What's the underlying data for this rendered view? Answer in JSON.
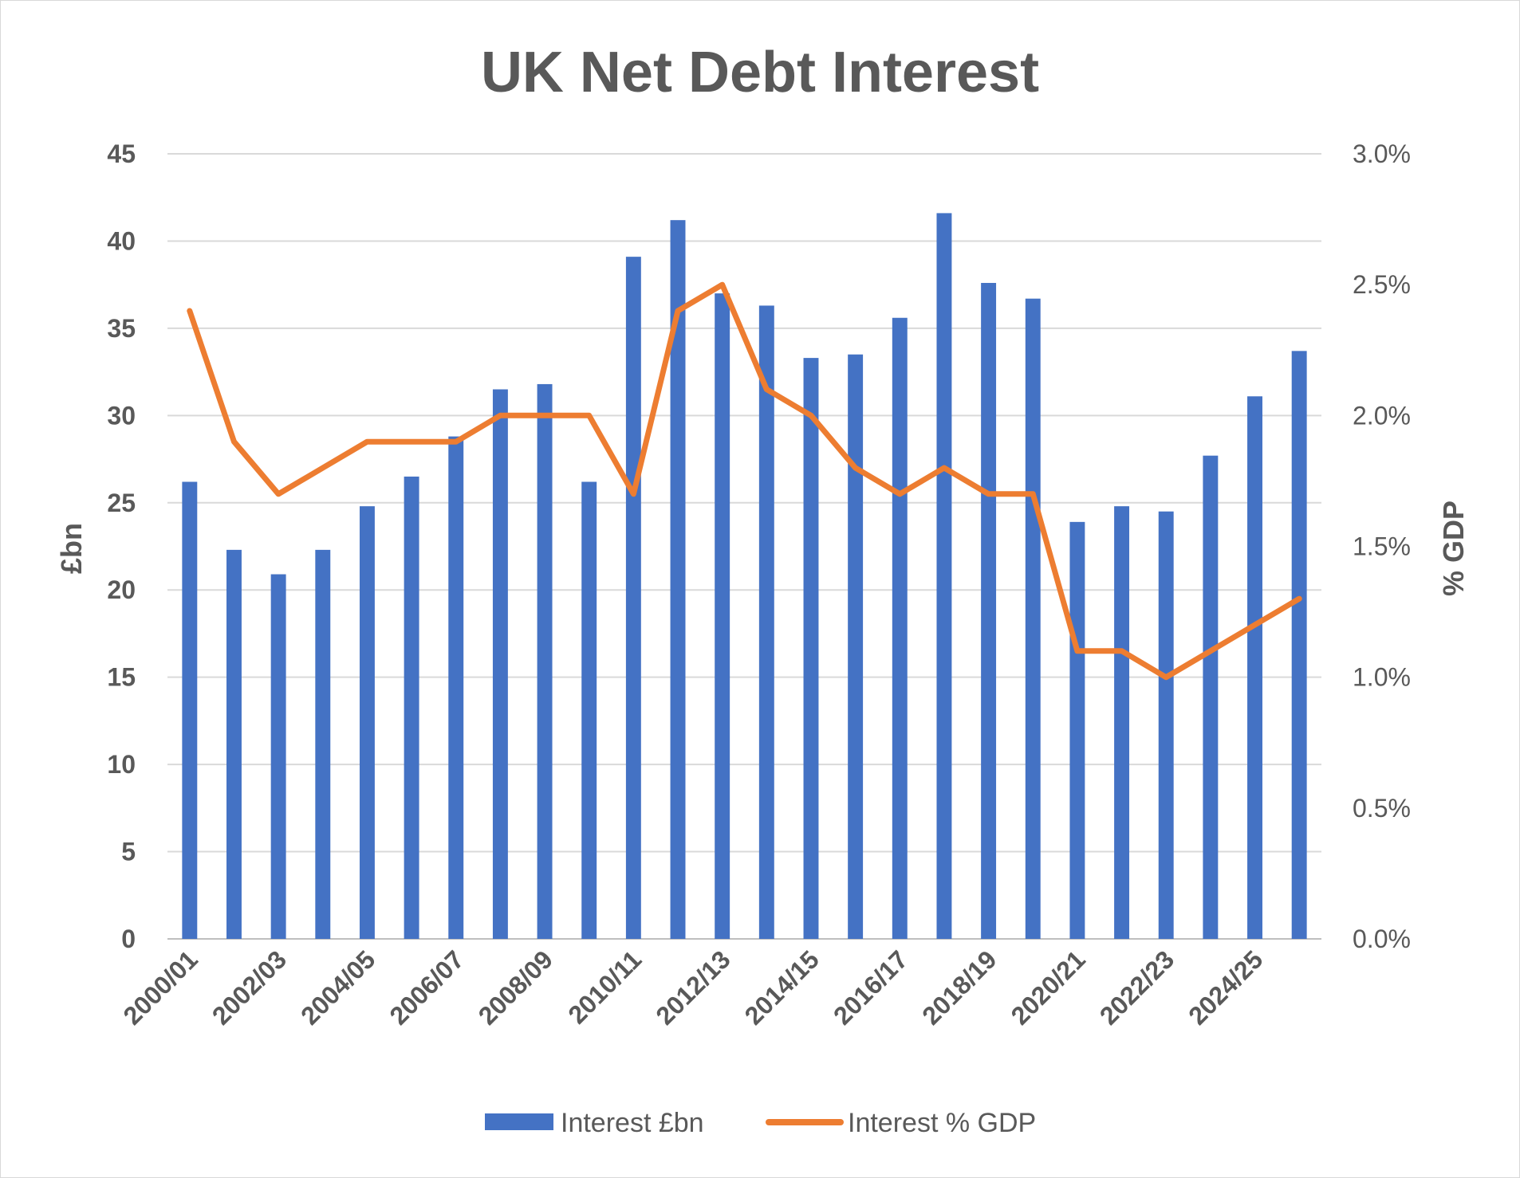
{
  "chart_data": {
    "type": "bar",
    "title": "UK Net Debt Interest",
    "categories": [
      "2000/01",
      "2001/02",
      "2002/03",
      "2003/04",
      "2004/05",
      "2005/06",
      "2006/07",
      "2007/08",
      "2008/09",
      "2009/10",
      "2010/11",
      "2011/12",
      "2012/13",
      "2013/14",
      "2014/15",
      "2015/16",
      "2016/17",
      "2017/18",
      "2018/19",
      "2019/20",
      "2020/21",
      "2021/22",
      "2022/23",
      "2023/24",
      "2024/25",
      "2025/26"
    ],
    "x_tick_labels": [
      "2000/01",
      "2002/03",
      "2004/05",
      "2006/07",
      "2008/09",
      "2010/11",
      "2012/13",
      "2014/15",
      "2016/17",
      "2018/19",
      "2020/21",
      "2022/23",
      "2024/25"
    ],
    "series": [
      {
        "name": "Interest £bn",
        "type": "bar",
        "axis": "left",
        "color": "#4472c4",
        "values": [
          26.2,
          22.3,
          20.9,
          22.3,
          24.8,
          26.5,
          28.8,
          31.5,
          31.8,
          26.2,
          39.1,
          41.2,
          37.0,
          36.3,
          33.3,
          33.5,
          35.6,
          41.6,
          37.6,
          36.7,
          23.9,
          24.8,
          24.5,
          27.7,
          31.1,
          33.7
        ]
      },
      {
        "name": "Interest % GDP",
        "type": "line",
        "axis": "right",
        "color": "#ed7d31",
        "values": [
          2.4,
          1.9,
          1.7,
          1.8,
          1.9,
          1.9,
          1.9,
          2.0,
          2.0,
          2.0,
          1.7,
          2.4,
          2.5,
          2.1,
          2.0,
          1.8,
          1.7,
          1.8,
          1.7,
          1.7,
          1.1,
          1.1,
          1.0,
          1.1,
          1.2,
          1.3
        ]
      }
    ],
    "ylabel": "£bn",
    "ylim": [
      0,
      45
    ],
    "y_ticks": [
      "0",
      "5",
      "10",
      "15",
      "20",
      "25",
      "30",
      "35",
      "40",
      "45"
    ],
    "y2label": "% GDP",
    "y2lim": [
      0,
      3.0
    ],
    "y2_ticks": [
      "0.0%",
      "0.5%",
      "1.0%",
      "1.5%",
      "2.0%",
      "2.5%",
      "3.0%"
    ],
    "grid": true,
    "legend": "bottom"
  }
}
